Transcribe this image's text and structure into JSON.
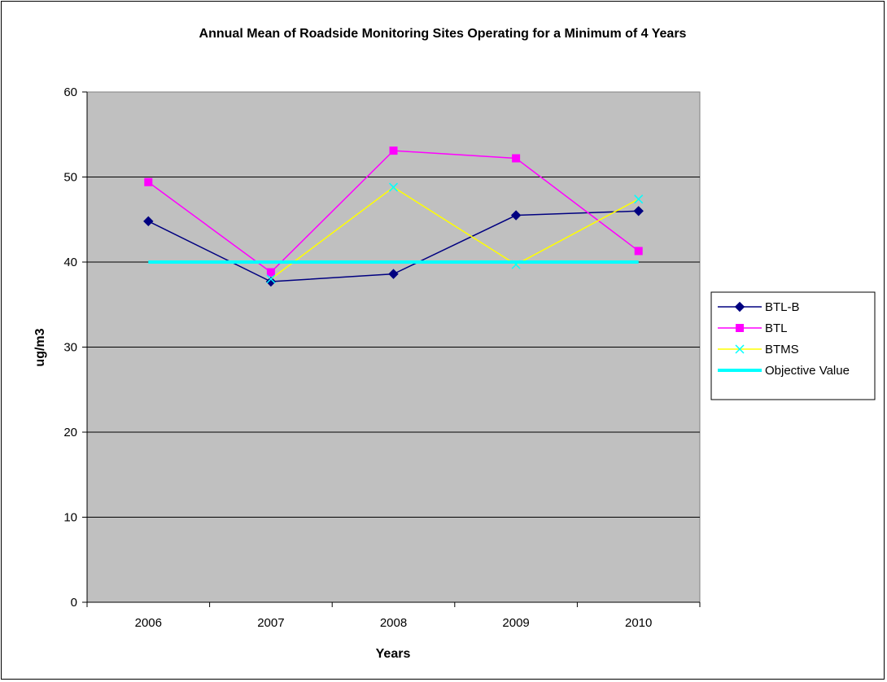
{
  "chart_data": {
    "type": "line",
    "title": "Annual Mean of Roadside Monitoring Sites Operating for a Minimum of 4 Years",
    "xlabel": "Years",
    "ylabel": "ug/m3",
    "categories": [
      "2006",
      "2007",
      "2008",
      "2009",
      "2010"
    ],
    "ylim": [
      0,
      60
    ],
    "yticks": [
      0,
      10,
      20,
      30,
      40,
      50,
      60
    ],
    "grid": true,
    "legend_position": "right",
    "plot_background": "#C0C0C0",
    "series": [
      {
        "name": "BTL-B",
        "values": [
          44.8,
          37.7,
          38.6,
          45.5,
          46.0
        ],
        "color": "#000080",
        "marker": "diamond"
      },
      {
        "name": "BTL",
        "values": [
          49.4,
          38.8,
          53.1,
          52.2,
          41.3
        ],
        "color": "#FF00FF",
        "marker": "square"
      },
      {
        "name": "BTMS",
        "values": [
          null,
          38.0,
          48.8,
          39.7,
          47.4
        ],
        "color": "#FFFF00",
        "marker_color": "#00FFFF",
        "marker": "x"
      },
      {
        "name": "Objective Value",
        "values": [
          40,
          40,
          40,
          40,
          40
        ],
        "color": "#00FFFF",
        "marker": "none"
      }
    ]
  }
}
